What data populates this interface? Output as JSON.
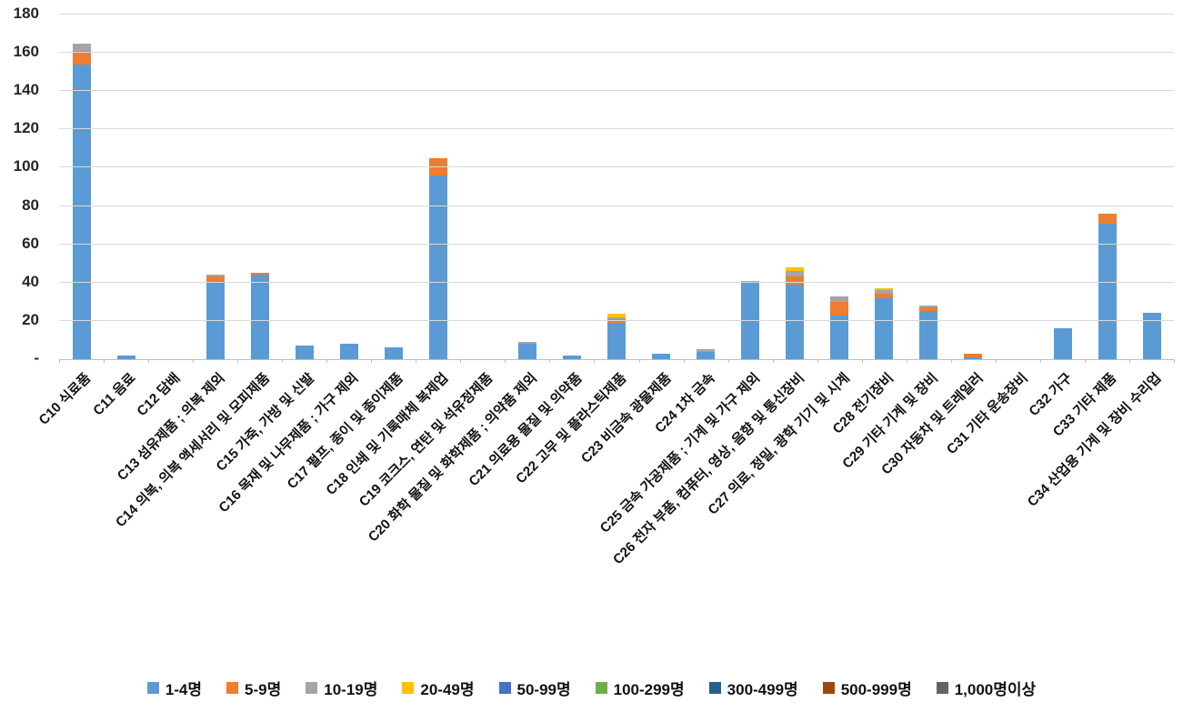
{
  "chart_data": {
    "type": "bar",
    "stacked": true,
    "title": "",
    "xlabel": "",
    "ylabel": "",
    "ymax": 180,
    "grid": true,
    "legend_position": "bottom",
    "y_ticks": [
      {
        "value": 180,
        "label": "180"
      },
      {
        "value": 160,
        "label": "160"
      },
      {
        "value": 140,
        "label": "140"
      },
      {
        "value": 120,
        "label": "120"
      },
      {
        "value": 100,
        "label": "100"
      },
      {
        "value": 80,
        "label": "80"
      },
      {
        "value": 60,
        "label": "60"
      },
      {
        "value": 40,
        "label": "40"
      },
      {
        "value": 20,
        "label": "20"
      },
      {
        "value": 0,
        "label": "-"
      }
    ],
    "categories": [
      "C10 식료품",
      "C11 음료",
      "C12 담배",
      "C13 섬유제품 ; 의복 제외",
      "C14 의복, 의복 액세서리 및 모피제품",
      "C15 가죽, 가방 및 신발",
      "C16 목재 및 나무제품 ; 가구 제외",
      "C17 펄프, 종이 및 종이제품",
      "C18 인쇄 및 기록매체 복제업",
      "C19 코크스, 연탄 및 석유정제품",
      "C20 화학 물질 및 화학제품 ; 의약품 제외",
      "C21 의료용 물질 및 의약품",
      "C22 고무 및 플라스틱제품",
      "C23 비금속 광물제품",
      "C24 1차 금속",
      "C25 금속 가공제품 ; 기계 및 가구 제외",
      "C26 전자 부품, 컴퓨터, 영상, 음향 및 통신장비",
      "C27 의료, 정밀, 광학 기기 및 시계",
      "C28 전기장비",
      "C29 기타 기계 및 장비",
      "C30 자동차 및 트레일러",
      "C31 기타 운송장비",
      "C32 가구",
      "C33 기타 제품",
      "C34 산업용 기계 및 장비 수리업"
    ],
    "series": [
      {
        "name": "1-4명",
        "color": "#5B9BD5",
        "values": [
          154,
          2,
          0,
          41,
          44,
          7,
          8,
          6,
          96,
          0,
          8,
          2,
          19,
          3,
          4,
          40,
          39,
          23,
          32,
          25,
          1,
          0,
          16,
          71,
          24
        ]
      },
      {
        "name": "5-9명",
        "color": "#ED7D31",
        "values": [
          7,
          0,
          0,
          2,
          1,
          0,
          0,
          0,
          9,
          0,
          0,
          0,
          2,
          0,
          0,
          0,
          4,
          7,
          2,
          2,
          2,
          0,
          0,
          5,
          0
        ]
      },
      {
        "name": "10-19명",
        "color": "#A5A5A5",
        "values": [
          4,
          0,
          0,
          1,
          0,
          0,
          0,
          0,
          0,
          0,
          1,
          0,
          1,
          0,
          1,
          1,
          3,
          3,
          2,
          1,
          0,
          0,
          0,
          0,
          0
        ]
      },
      {
        "name": "20-49명",
        "color": "#FFC000",
        "values": [
          0,
          0,
          0,
          0,
          0,
          0,
          0,
          0,
          0,
          0,
          0,
          0,
          2,
          0,
          0,
          0,
          2,
          0,
          1,
          0,
          0,
          0,
          0,
          0,
          0
        ]
      },
      {
        "name": "50-99명",
        "color": "#4472C4",
        "values": [
          0,
          0,
          0,
          0,
          0,
          0,
          0,
          0,
          0,
          0,
          0,
          0,
          0,
          0,
          0,
          0,
          0,
          0,
          0,
          0,
          0,
          0,
          0,
          0,
          0
        ]
      },
      {
        "name": "100-299명",
        "color": "#70AD47",
        "values": [
          0,
          0,
          0,
          0,
          0,
          0,
          0,
          0,
          0,
          0,
          0,
          0,
          0,
          0,
          0,
          0,
          0,
          0,
          0,
          0,
          0,
          0,
          0,
          0,
          0
        ]
      },
      {
        "name": "300-499명",
        "color": "#255E91",
        "values": [
          0,
          0,
          0,
          0,
          0,
          0,
          0,
          0,
          0,
          0,
          0,
          0,
          0,
          0,
          0,
          0,
          0,
          0,
          0,
          0,
          0,
          0,
          0,
          0,
          0
        ]
      },
      {
        "name": "500-999명",
        "color": "#9E480E",
        "values": [
          0,
          0,
          0,
          0,
          0,
          0,
          0,
          0,
          0,
          0,
          0,
          0,
          0,
          0,
          0,
          0,
          0,
          0,
          0,
          0,
          0,
          0,
          0,
          0,
          0
        ]
      },
      {
        "name": "1,000명이상",
        "color": "#636363",
        "values": [
          0,
          0,
          0,
          0,
          0,
          0,
          0,
          0,
          0,
          0,
          0,
          0,
          0,
          0,
          0,
          0,
          0,
          0,
          0,
          0,
          0,
          0,
          0,
          0,
          0
        ]
      }
    ],
    "colors": {
      "gridline": "#d9d9d9",
      "axis_line": "#bfbfbf",
      "text": "#111111"
    }
  }
}
